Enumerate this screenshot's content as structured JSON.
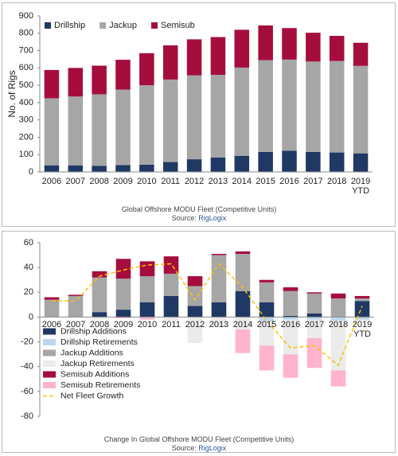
{
  "chart_data": [
    {
      "type": "bar",
      "stacked": true,
      "y_label": "No. of Rigs",
      "caption": "Global Offshore MODU Fleet (Competitive Units)",
      "source_prefix": "Source:",
      "source": "RigLogix",
      "categories": [
        "2006",
        "2007",
        "2008",
        "2009",
        "2010",
        "2011",
        "2012",
        "2013",
        "2014",
        "2015",
        "2016",
        "2017",
        "2018",
        "2019 YTD"
      ],
      "series": [
        {
          "name": "Drillship",
          "color": "#1f3864",
          "values": [
            38,
            38,
            35,
            40,
            42,
            57,
            73,
            83,
            93,
            115,
            122,
            115,
            112,
            107
          ]
        },
        {
          "name": "Jackup",
          "color": "#a6a6a6",
          "values": [
            387,
            397,
            413,
            435,
            458,
            476,
            484,
            477,
            509,
            530,
            526,
            522,
            528,
            505
          ]
        },
        {
          "name": "Semisub",
          "color": "#a50d3d",
          "values": [
            163,
            165,
            165,
            172,
            185,
            197,
            208,
            218,
            218,
            200,
            182,
            166,
            145,
            133
          ]
        }
      ],
      "ylim": [
        0,
        900
      ],
      "yticks": [
        0,
        100,
        200,
        300,
        400,
        500,
        600,
        700,
        800,
        900
      ],
      "grid": false,
      "legend": "top-left"
    },
    {
      "type": "bar",
      "stacked": true,
      "caption": "Change In Global Offshore MODU Fleet (Competitive Units)",
      "source_prefix": "Source:",
      "source": "RigLogix",
      "categories": [
        "2006",
        "2007",
        "2008",
        "2009",
        "2010",
        "2011",
        "2012",
        "2013",
        "2014",
        "2015",
        "2016",
        "2017",
        "2018",
        "2019 YTD"
      ],
      "series": [
        {
          "name": "Drillship Additions",
          "color": "#1f3864",
          "values": [
            0,
            0,
            4,
            6,
            12,
            17,
            9,
            12,
            21,
            12,
            1,
            3,
            0,
            13
          ]
        },
        {
          "name": "Drillship Retirements",
          "color": "#bdd7ee",
          "values": [
            0,
            0,
            0,
            0,
            0,
            0,
            0,
            0,
            0,
            -4,
            -2,
            -2,
            -3,
            -2
          ]
        },
        {
          "name": "Jackup Additions",
          "color": "#a6a6a6",
          "values": [
            14,
            17,
            28,
            25,
            21,
            18,
            16,
            38,
            30,
            16,
            20,
            16,
            15,
            2
          ]
        },
        {
          "name": "Jackup Retirements",
          "color": "#ebebeb",
          "values": [
            0,
            0,
            -2,
            0,
            0,
            -3,
            -21,
            -8,
            -10,
            -19,
            -28,
            -15,
            -40,
            -2
          ]
        },
        {
          "name": "Semisub Additions",
          "color": "#a50d3d",
          "values": [
            2,
            1,
            5,
            16,
            12,
            14,
            8,
            1,
            2,
            2,
            3,
            1,
            4,
            2
          ]
        },
        {
          "name": "Semisub Retirements",
          "color": "#ffb3cc",
          "values": [
            0,
            0,
            0,
            -1,
            -2,
            0,
            0,
            0,
            -19,
            -20,
            -19,
            -24,
            -13,
            0
          ]
        },
        {
          "name": "Net Fleet Growth",
          "type": "line",
          "dashed": true,
          "color": "#ffc000",
          "values": [
            13,
            13,
            33,
            38,
            42,
            43,
            14,
            43,
            24,
            -3,
            -25,
            -23,
            -39,
            9
          ]
        }
      ],
      "ylim": [
        -80,
        60
      ],
      "yticks": [
        -80,
        -60,
        -40,
        -20,
        0,
        20,
        40,
        60
      ],
      "grid": false,
      "legend": "bottom-left"
    }
  ]
}
